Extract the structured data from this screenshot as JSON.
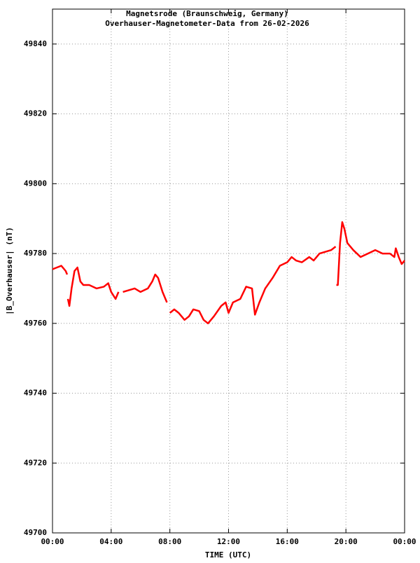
{
  "chart_data": {
    "type": "line",
    "title": "Magnetsrode (Braunschweig, Germany)",
    "subtitle": "Overhauser-Magnetometer-Data from 26-02-2026",
    "x_label": "TIME (UTC)",
    "y_label": "|B_Overhauser| (nT)",
    "x": [
      0,
      0.3,
      0.6,
      0.9,
      1.0,
      1.02,
      1.05,
      1.15,
      1.3,
      1.5,
      1.7,
      1.9,
      2.1,
      2.5,
      3.0,
      3.5,
      3.8,
      4.0,
      4.3,
      4.5,
      4.65,
      4.8,
      5.2,
      5.6,
      6.0,
      6.5,
      6.8,
      7.0,
      7.2,
      7.5,
      7.8,
      7.85,
      8.0,
      8.3,
      8.6,
      9.0,
      9.3,
      9.6,
      10.0,
      10.3,
      10.6,
      11.0,
      11.5,
      11.8,
      12.0,
      12.3,
      12.8,
      13.2,
      13.6,
      13.8,
      14.1,
      14.5,
      15.0,
      15.5,
      16.0,
      16.3,
      16.6,
      17.0,
      17.5,
      17.8,
      18.2,
      18.6,
      19.0,
      19.3,
      19.32,
      19.35,
      19.45,
      19.6,
      19.75,
      19.9,
      20.1,
      20.5,
      21.0,
      21.5,
      22.0,
      22.5,
      23.0,
      23.3,
      23.4,
      23.6,
      23.8,
      24.0
    ],
    "series": [
      {
        "name": "|B_Overhauser|",
        "color": "#ff0000",
        "values": [
          49775.5,
          49776,
          49776.5,
          49775,
          49774,
          null,
          49767,
          49765,
          49770,
          49775,
          49776,
          49772,
          49771,
          49771,
          49770,
          49770.5,
          49771.5,
          49769,
          49767,
          49769,
          null,
          49769,
          49769.5,
          49770,
          49769,
          49770,
          49772,
          49774,
          49773,
          49769,
          49766,
          null,
          49763,
          49764,
          49763,
          49761,
          49762,
          49764,
          49763.5,
          49761,
          49760,
          49762,
          49765,
          49766,
          49763,
          49766,
          49767,
          49770.5,
          49770,
          49762.5,
          49766,
          49770,
          49773,
          49776.5,
          49777.5,
          49779,
          49778,
          49777.5,
          49779,
          49778,
          49780,
          49780.5,
          49781,
          49782,
          null,
          49771,
          49771,
          49783,
          49789,
          49787,
          49783,
          49781,
          49779,
          49780,
          49781,
          49780,
          49780,
          49779,
          49781.5,
          49779,
          49777,
          49778
        ]
      }
    ],
    "xlim": [
      0,
      24
    ],
    "xticks": [
      {
        "value": 0,
        "label": "00:00"
      },
      {
        "value": 4,
        "label": "04:00"
      },
      {
        "value": 8,
        "label": "08:00"
      },
      {
        "value": 12,
        "label": "12:00"
      },
      {
        "value": 16,
        "label": "16:00"
      },
      {
        "value": 20,
        "label": "20:00"
      },
      {
        "value": 24,
        "label": "00:00"
      }
    ],
    "ylim": [
      49700,
      49850
    ],
    "yticks": [
      49700,
      49720,
      49740,
      49760,
      49780,
      49800,
      49820,
      49840
    ],
    "grid": true
  }
}
